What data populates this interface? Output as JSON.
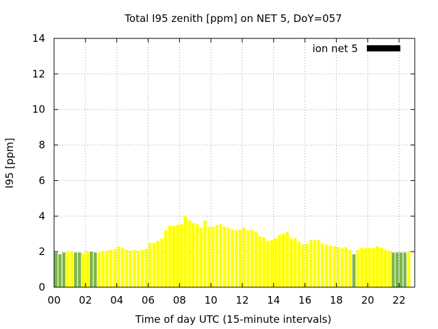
{
  "chart_data": {
    "type": "bar",
    "title": "Total I95 zenith [ppm] on NET 5, DoY=057",
    "xlabel": "Time of day UTC (15-minute intervals)",
    "ylabel": "I95 [ppm]",
    "xlim": [
      0,
      23
    ],
    "ylim": [
      0,
      14
    ],
    "x_ticks": [
      "00",
      "02",
      "04",
      "06",
      "08",
      "10",
      "12",
      "14",
      "16",
      "18",
      "20",
      "22"
    ],
    "y_ticks": [
      "0",
      "2",
      "4",
      "6",
      "8",
      "10",
      "12",
      "14"
    ],
    "grid": true,
    "legend": {
      "label": "ion net 5",
      "color": "#000000",
      "placement": "top-right"
    },
    "colors": {
      "yellow": "#ffff00",
      "green": "#7ab648",
      "legend": "#000000"
    },
    "bar_width_hours": 0.2,
    "series": [
      {
        "x": [
          0.125,
          0.375,
          0.625,
          0.875,
          1.125,
          1.375,
          1.625,
          1.875,
          2.125,
          2.375,
          2.625,
          2.875,
          3.125,
          3.375,
          3.625,
          3.875,
          4.125,
          4.375,
          4.625,
          4.875,
          5.125,
          5.375,
          5.625,
          5.875,
          6.125,
          6.375,
          6.625,
          6.875,
          7.125,
          7.375,
          7.625,
          7.875,
          8.125,
          8.375,
          8.625,
          8.875,
          9.125,
          9.375,
          9.625,
          9.875,
          10.125,
          10.375,
          10.625,
          10.875,
          11.125,
          11.375,
          11.625,
          11.875,
          12.125,
          12.375,
          12.625,
          12.875,
          13.125,
          13.375,
          13.625,
          13.875,
          14.125,
          14.375,
          14.625,
          14.875,
          15.125,
          15.375,
          15.625,
          15.875,
          16.125,
          16.375,
          16.625,
          16.875,
          17.125,
          17.375,
          17.625,
          17.875,
          18.125,
          18.375,
          18.625,
          18.875,
          19.125,
          19.375,
          19.625,
          19.875,
          20.125,
          20.375,
          20.625,
          20.875,
          21.125,
          21.375,
          21.625,
          21.875,
          22.125,
          22.375,
          22.625
        ],
        "values": [
          1.95,
          1.85,
          1.95,
          2.0,
          2.0,
          1.95,
          1.95,
          1.9,
          2.0,
          2.0,
          1.95,
          1.95,
          2.0,
          2.05,
          2.1,
          2.15,
          2.3,
          2.2,
          2.1,
          2.05,
          2.1,
          2.05,
          2.1,
          2.15,
          2.5,
          2.5,
          2.6,
          2.75,
          3.2,
          3.45,
          3.45,
          3.5,
          3.55,
          4.0,
          3.75,
          3.6,
          3.55,
          3.35,
          3.75,
          3.4,
          3.4,
          3.5,
          3.55,
          3.4,
          3.35,
          3.25,
          3.2,
          3.25,
          3.35,
          3.2,
          3.25,
          3.1,
          2.85,
          2.8,
          2.6,
          2.65,
          2.75,
          2.95,
          3.0,
          3.1,
          2.75,
          2.75,
          2.55,
          2.4,
          2.45,
          2.65,
          2.65,
          2.65,
          2.45,
          2.4,
          2.35,
          2.3,
          2.25,
          2.2,
          2.25,
          2.1,
          1.85,
          2.1,
          2.2,
          2.2,
          2.2,
          2.2,
          2.3,
          2.2,
          2.1,
          2.05,
          1.95,
          1.95,
          1.95,
          1.95,
          2.05
        ],
        "colors": [
          "green",
          "green",
          "green",
          "yellow",
          "yellow",
          "green",
          "green",
          "yellow",
          "yellow",
          "green",
          "green",
          "yellow",
          "yellow",
          "yellow",
          "yellow",
          "yellow",
          "yellow",
          "yellow",
          "yellow",
          "yellow",
          "yellow",
          "yellow",
          "yellow",
          "yellow",
          "yellow",
          "yellow",
          "yellow",
          "yellow",
          "yellow",
          "yellow",
          "yellow",
          "yellow",
          "yellow",
          "yellow",
          "yellow",
          "yellow",
          "yellow",
          "yellow",
          "yellow",
          "yellow",
          "yellow",
          "yellow",
          "yellow",
          "yellow",
          "yellow",
          "yellow",
          "yellow",
          "yellow",
          "yellow",
          "yellow",
          "yellow",
          "yellow",
          "yellow",
          "yellow",
          "yellow",
          "yellow",
          "yellow",
          "yellow",
          "yellow",
          "yellow",
          "yellow",
          "yellow",
          "yellow",
          "yellow",
          "yellow",
          "yellow",
          "yellow",
          "yellow",
          "yellow",
          "yellow",
          "yellow",
          "yellow",
          "yellow",
          "yellow",
          "yellow",
          "yellow",
          "green",
          "yellow",
          "yellow",
          "yellow",
          "yellow",
          "yellow",
          "yellow",
          "yellow",
          "yellow",
          "yellow",
          "green",
          "green",
          "green",
          "green",
          "yellow"
        ]
      }
    ]
  }
}
